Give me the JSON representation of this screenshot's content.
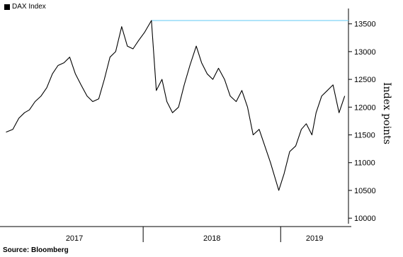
{
  "chart_data": {
    "type": "line",
    "legend": {
      "label": "DAX Index",
      "position": "top-left"
    },
    "ylabel": "Index points",
    "ylim": [
      9900,
      13700
    ],
    "yticks": [
      10000,
      10500,
      11000,
      11500,
      12000,
      12500,
      13000,
      13500
    ],
    "ytick_labels": [
      "10000",
      "10500",
      "11000",
      "11500",
      "12000",
      "12500",
      "13000",
      "13500"
    ],
    "xlim": [
      "2017-01-01",
      "2019-06-30"
    ],
    "year_labels": [
      "2017",
      "2018",
      "2019"
    ],
    "reference_line": {
      "value": 13560,
      "from": "2018-01-23",
      "color": "#7fd3f5"
    },
    "source": "Source: Bloomberg",
    "series": [
      {
        "line_color": "#000000",
        "x": [
          "2017-01-02",
          "2017-01-20",
          "2017-02-05",
          "2017-02-20",
          "2017-03-05",
          "2017-03-20",
          "2017-04-05",
          "2017-04-20",
          "2017-05-05",
          "2017-05-20",
          "2017-06-05",
          "2017-06-20",
          "2017-07-05",
          "2017-07-20",
          "2017-08-05",
          "2017-08-20",
          "2017-09-05",
          "2017-09-20",
          "2017-10-05",
          "2017-10-20",
          "2017-11-05",
          "2017-11-20",
          "2017-12-05",
          "2017-12-20",
          "2018-01-05",
          "2018-01-23",
          "2018-02-05",
          "2018-02-20",
          "2018-03-05",
          "2018-03-20",
          "2018-04-05",
          "2018-04-20",
          "2018-05-05",
          "2018-05-22",
          "2018-06-05",
          "2018-06-20",
          "2018-07-05",
          "2018-07-20",
          "2018-08-05",
          "2018-08-20",
          "2018-09-05",
          "2018-09-20",
          "2018-10-05",
          "2018-10-20",
          "2018-11-05",
          "2018-11-20",
          "2018-12-05",
          "2018-12-27",
          "2019-01-10",
          "2019-01-25",
          "2019-02-10",
          "2019-02-25",
          "2019-03-10",
          "2019-03-25",
          "2019-04-05",
          "2019-04-20",
          "2019-05-05",
          "2019-05-20",
          "2019-06-05",
          "2019-06-20"
        ],
        "y": [
          11550,
          11600,
          11800,
          11900,
          11950,
          12100,
          12200,
          12350,
          12600,
          12750,
          12800,
          12900,
          12600,
          12400,
          12200,
          12100,
          12150,
          12500,
          12900,
          13000,
          13450,
          13100,
          13050,
          13200,
          13350,
          13560,
          12300,
          12500,
          12100,
          11900,
          12000,
          12400,
          12750,
          13100,
          12800,
          12600,
          12500,
          12700,
          12500,
          12200,
          12100,
          12300,
          12000,
          11500,
          11600,
          11300,
          11000,
          10500,
          10800,
          11200,
          11300,
          11600,
          11700,
          11500,
          11900,
          12200,
          12300,
          12400,
          11900,
          12200
        ]
      }
    ]
  }
}
